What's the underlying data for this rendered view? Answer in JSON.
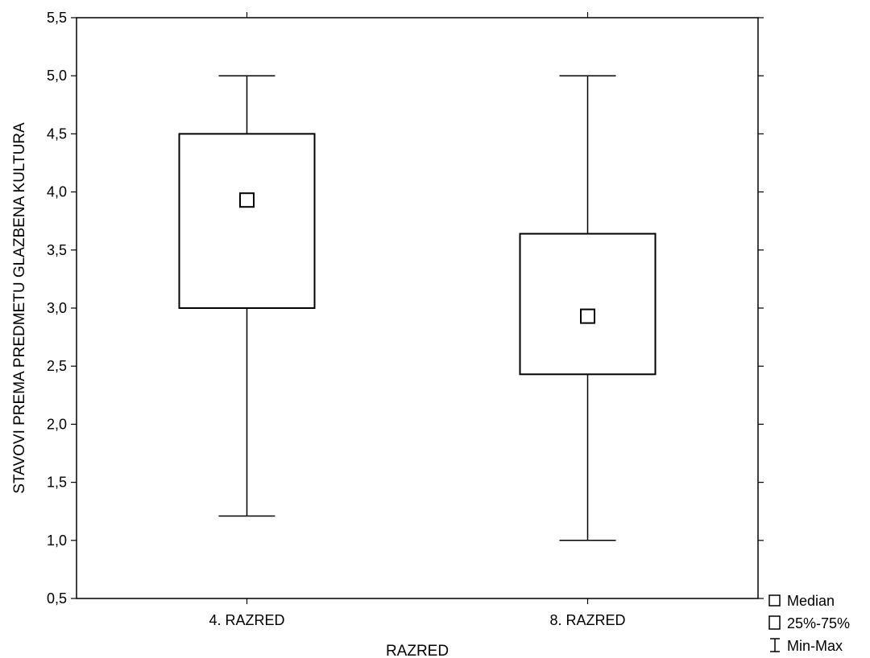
{
  "chart_data": {
    "type": "box",
    "xlabel": "RAZRED",
    "ylabel": "STAVOVI PREMA PREDMETU GLAZBENA KULTURA",
    "ylim": [
      0.5,
      5.5
    ],
    "yticks": [
      "0,5",
      "1,0",
      "1,5",
      "2,0",
      "2,5",
      "3,0",
      "3,5",
      "4,0",
      "4,5",
      "5,0",
      "5,5"
    ],
    "categories": [
      "4. RAZRED",
      "8. RAZRED"
    ],
    "boxes": [
      {
        "category": "4. RAZRED",
        "min": 1.21,
        "q1": 3.0,
        "median": 3.93,
        "q3": 4.5,
        "max": 5.0
      },
      {
        "category": "8. RAZRED",
        "min": 1.0,
        "q1": 2.43,
        "median": 2.93,
        "q3": 3.64,
        "max": 5.0
      }
    ],
    "legend": {
      "position": "bottom-right-outside",
      "entries": [
        "Median",
        "25%-75%",
        "Min-Max"
      ]
    },
    "grid": false
  }
}
